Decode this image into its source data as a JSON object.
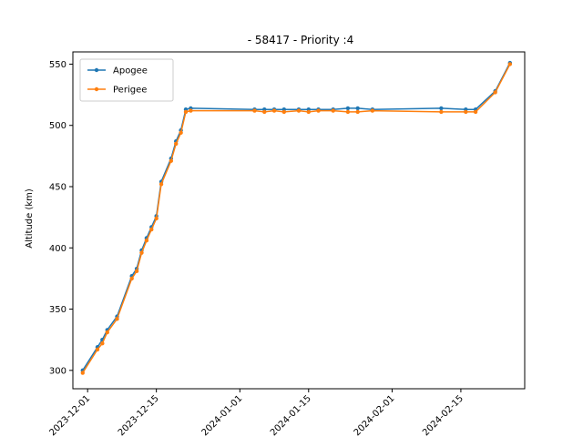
{
  "chart_data": {
    "type": "line",
    "title": "- 58417 - Priority :4",
    "xlabel": "",
    "ylabel": "Altitude (km)",
    "xlim": [
      "2023-11-28",
      "2024-02-28"
    ],
    "ylim": [
      285,
      560
    ],
    "yticks": [
      300,
      350,
      400,
      450,
      500,
      550
    ],
    "xticks": [
      "2023-12-01",
      "2023-12-15",
      "2024-01-01",
      "2024-01-15",
      "2024-02-01",
      "2024-02-15"
    ],
    "grid": false,
    "legend_position": "top-left",
    "series": [
      {
        "name": "Apogee",
        "color": "#1f77b4",
        "points": [
          [
            "2023-11-30",
            300
          ],
          [
            "2023-12-03",
            319
          ],
          [
            "2023-12-04",
            325
          ],
          [
            "2023-12-05",
            333
          ],
          [
            "2023-12-07",
            344
          ],
          [
            "2023-12-10",
            377
          ],
          [
            "2023-12-11",
            383
          ],
          [
            "2023-12-12",
            398
          ],
          [
            "2023-12-13",
            408
          ],
          [
            "2023-12-14",
            417
          ],
          [
            "2023-12-15",
            426
          ],
          [
            "2023-12-16",
            454
          ],
          [
            "2023-12-18",
            473
          ],
          [
            "2023-12-19",
            487
          ],
          [
            "2023-12-20",
            496
          ],
          [
            "2023-12-21",
            513
          ],
          [
            "2023-12-22",
            514
          ],
          [
            "2024-01-04",
            513
          ],
          [
            "2024-01-06",
            513
          ],
          [
            "2024-01-08",
            513
          ],
          [
            "2024-01-10",
            513
          ],
          [
            "2024-01-13",
            513
          ],
          [
            "2024-01-15",
            513
          ],
          [
            "2024-01-17",
            513
          ],
          [
            "2024-01-20",
            513
          ],
          [
            "2024-01-23",
            514
          ],
          [
            "2024-01-25",
            514
          ],
          [
            "2024-01-28",
            513
          ],
          [
            "2024-02-11",
            514
          ],
          [
            "2024-02-16",
            513
          ],
          [
            "2024-02-18",
            513
          ],
          [
            "2024-02-22",
            528
          ],
          [
            "2024-02-25",
            551
          ]
        ]
      },
      {
        "name": "Perigee",
        "color": "#ff7f0e",
        "points": [
          [
            "2023-11-30",
            298
          ],
          [
            "2023-12-03",
            317
          ],
          [
            "2023-12-04",
            322
          ],
          [
            "2023-12-05",
            331
          ],
          [
            "2023-12-07",
            342
          ],
          [
            "2023-12-10",
            375
          ],
          [
            "2023-12-11",
            381
          ],
          [
            "2023-12-12",
            396
          ],
          [
            "2023-12-13",
            406
          ],
          [
            "2023-12-14",
            415
          ],
          [
            "2023-12-15",
            424
          ],
          [
            "2023-12-16",
            452
          ],
          [
            "2023-12-18",
            471
          ],
          [
            "2023-12-19",
            485
          ],
          [
            "2023-12-20",
            494
          ],
          [
            "2023-12-21",
            511
          ],
          [
            "2023-12-22",
            512
          ],
          [
            "2024-01-04",
            512
          ],
          [
            "2024-01-06",
            511
          ],
          [
            "2024-01-08",
            512
          ],
          [
            "2024-01-10",
            511
          ],
          [
            "2024-01-13",
            512
          ],
          [
            "2024-01-15",
            511
          ],
          [
            "2024-01-17",
            512
          ],
          [
            "2024-01-20",
            512
          ],
          [
            "2024-01-23",
            511
          ],
          [
            "2024-01-25",
            511
          ],
          [
            "2024-01-28",
            512
          ],
          [
            "2024-02-11",
            511
          ],
          [
            "2024-02-16",
            511
          ],
          [
            "2024-02-18",
            511
          ],
          [
            "2024-02-22",
            527
          ],
          [
            "2024-02-25",
            550
          ]
        ]
      }
    ]
  }
}
